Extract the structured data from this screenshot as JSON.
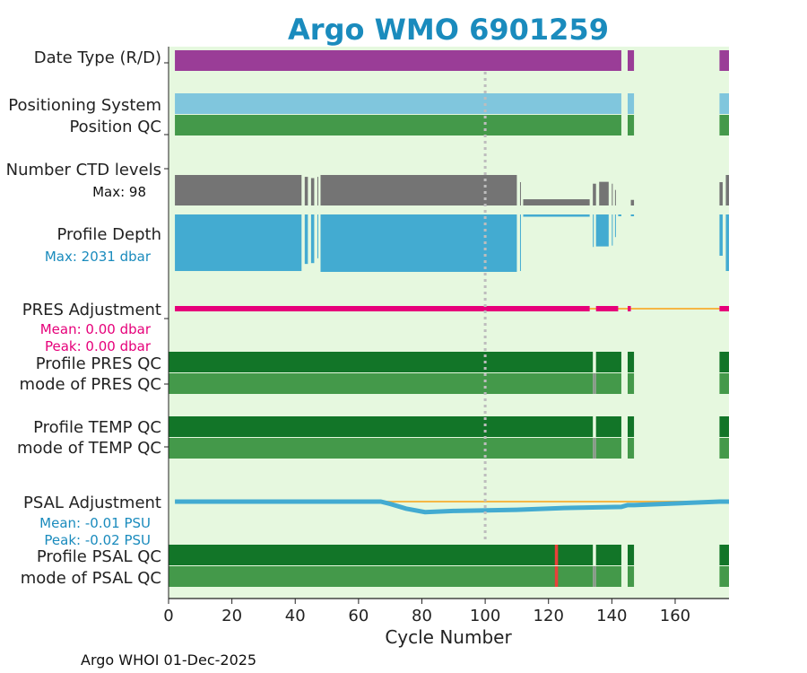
{
  "title": "Argo WMO 6901259",
  "footer": "Argo WHOI 01-Dec-2025",
  "colors": {
    "title": "#1a8bbd",
    "background": "#e6f8df",
    "datetype": "#9a3d97",
    "positioning": "#80c6dd",
    "qc_light": "#44994a",
    "qc_dark": "#127528",
    "ctd": "#747474",
    "depth": "#43abd1",
    "pres_adj": "#e6007a",
    "psal_adj": "#43abd1",
    "zero_line": "#f5b745",
    "qc_bad": "#e8413a",
    "qc_gray": "#8a9a8a",
    "mean_line": "#bdbdbd",
    "stat_pres": "#e6007a",
    "stat_psal": "#1a8bbd"
  },
  "rows": {
    "date_type": "Date Type (R/D)",
    "positioning": "Positioning System",
    "position_qc": "Position QC",
    "ctd_levels": "Number CTD levels",
    "ctd_max": "Max: 98",
    "profile_depth": "Profile Depth",
    "depth_max": "Max: 2031 dbar",
    "pres_adj": "PRES Adjustment",
    "pres_mean": "Mean: 0.00 dbar",
    "pres_peak": "Peak: 0.00 dbar",
    "pres_qc": "Profile PRES QC",
    "pres_mode": "mode of PRES QC",
    "temp_qc": "Profile TEMP QC",
    "temp_mode": "mode of TEMP QC",
    "psal_adj": "PSAL Adjustment",
    "psal_mean": "Mean: -0.01 PSU",
    "psal_peak": "Peak: -0.02 PSU",
    "psal_qc": "Profile PSAL QC",
    "psal_mode": "mode of PSAL QC"
  },
  "chart_data": {
    "type": "bar",
    "title": "Argo WMO 6901259",
    "xlabel": "Cycle Number",
    "ylabel": "",
    "xlim": [
      0,
      177
    ],
    "xticks": [
      0,
      20,
      40,
      60,
      80,
      100,
      120,
      140,
      160
    ],
    "mean_cycle_marker": 100,
    "data_segments": [
      [
        2,
        143
      ],
      [
        145,
        147
      ],
      [
        174,
        177
      ]
    ],
    "pres_qc_segments": [
      [
        0,
        134
      ],
      [
        135,
        143
      ],
      [
        145,
        147
      ],
      [
        174,
        177
      ]
    ],
    "ctd_levels_max": 98,
    "ctd_levels": [
      [
        2,
        42,
        98
      ],
      [
        43,
        44,
        92
      ],
      [
        45,
        46,
        88
      ],
      [
        47,
        47,
        92
      ],
      [
        48,
        110,
        98
      ],
      [
        111,
        111,
        75
      ],
      [
        112,
        133,
        20
      ],
      [
        134,
        135,
        70
      ],
      [
        136,
        139,
        76
      ],
      [
        140,
        140,
        70
      ],
      [
        141,
        141,
        50
      ],
      [
        146,
        147,
        18
      ],
      [
        174,
        175,
        75
      ],
      [
        176,
        177,
        98
      ]
    ],
    "profile_depth_max_dbar": 2031,
    "profile_depth": [
      [
        2,
        42,
        2000
      ],
      [
        43,
        44,
        1750
      ],
      [
        45,
        46,
        1720
      ],
      [
        47,
        47,
        1550
      ],
      [
        48,
        110,
        2031
      ],
      [
        111,
        111,
        2000
      ],
      [
        112,
        133,
        80
      ],
      [
        134,
        134,
        1150
      ],
      [
        135,
        139,
        1130
      ],
      [
        140,
        140,
        1100
      ],
      [
        141,
        141,
        800
      ],
      [
        142,
        143,
        60
      ],
      [
        146,
        147,
        60
      ],
      [
        174,
        175,
        1460
      ],
      [
        176,
        177,
        2000
      ]
    ],
    "pres_adjustment_dbar": {
      "mean": 0.0,
      "peak": 0.0
    },
    "psal_adjustment_psu": {
      "mean": -0.01,
      "peak": -0.02,
      "points": [
        [
          2,
          0.0
        ],
        [
          67,
          0.0
        ],
        [
          70,
          -0.004
        ],
        [
          75,
          -0.012
        ],
        [
          81,
          -0.018
        ],
        [
          90,
          -0.016
        ],
        [
          110,
          -0.014
        ],
        [
          125,
          -0.011
        ],
        [
          143,
          -0.009
        ],
        [
          145,
          -0.006
        ],
        [
          147,
          -0.006
        ],
        [
          174,
          0.0
        ],
        [
          177,
          0.0
        ]
      ]
    },
    "psal_qc_bad_cycles": [
      122
    ],
    "mode_qc_gray_cycles": [
      134
    ]
  }
}
